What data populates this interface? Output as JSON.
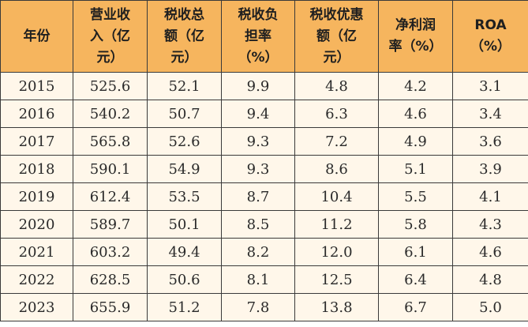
{
  "table": {
    "headers": [
      "年份",
      "营业收\n入（亿\n元）",
      "税收总\n额（亿\n元）",
      "税收负\n担率\n（%）",
      "税收优惠\n额（亿\n元）",
      "净利润\n率（%）",
      "ROA\n（%）"
    ],
    "rows": [
      [
        "2015",
        "525.6",
        "52.1",
        "9.9",
        "4.8",
        "4.2",
        "3.1"
      ],
      [
        "2016",
        "540.2",
        "50.7",
        "9.4",
        "6.3",
        "4.6",
        "3.4"
      ],
      [
        "2017",
        "565.8",
        "52.6",
        "9.3",
        "7.2",
        "4.9",
        "3.6"
      ],
      [
        "2018",
        "590.1",
        "54.9",
        "9.3",
        "8.6",
        "5.1",
        "3.9"
      ],
      [
        "2019",
        "612.4",
        "53.5",
        "8.7",
        "10.4",
        "5.5",
        "4.1"
      ],
      [
        "2020",
        "589.7",
        "50.1",
        "8.5",
        "11.2",
        "5.8",
        "4.3"
      ],
      [
        "2021",
        "603.2",
        "49.4",
        "8.2",
        "12.0",
        "6.1",
        "4.6"
      ],
      [
        "2022",
        "628.5",
        "50.6",
        "8.1",
        "12.5",
        "6.4",
        "4.8"
      ],
      [
        "2023",
        "655.9",
        "51.2",
        "7.8",
        "13.8",
        "6.7",
        "5.0"
      ]
    ]
  },
  "colors": {
    "header_bg": "#f6b55e",
    "body_bg": "#fff7ea",
    "border": "#3a3a3a"
  }
}
